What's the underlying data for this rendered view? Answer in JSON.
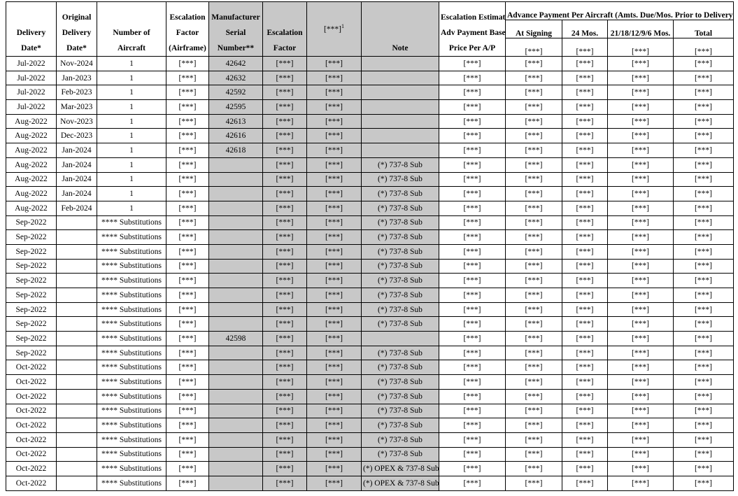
{
  "header": {
    "group": "Advance Payment Per Aircraft (Amts. Due/Mos. Prior to Delivery):",
    "columns": [
      {
        "lines": [
          "Delivery",
          "Date*"
        ]
      },
      {
        "lines": [
          "Original",
          "Delivery",
          "Date*"
        ]
      },
      {
        "lines": [
          "Number of",
          "Aircraft"
        ]
      },
      {
        "lines": [
          "Escalation",
          "Factor",
          "(Airframe)"
        ]
      },
      {
        "lines": [
          "Manufacturer",
          "Serial",
          "Number**"
        ]
      },
      {
        "lines": [
          "Escalation",
          "Factor"
        ]
      },
      {
        "lines": [
          "[***]"
        ],
        "footnote": "1"
      },
      {
        "lines": [
          "Note"
        ]
      },
      {
        "lines": [
          "Escalation Estimate",
          "Adv Payment Base",
          "Price Per A/P"
        ]
      }
    ],
    "subcolumns": [
      {
        "label": "At Signing",
        "code": "[***]"
      },
      {
        "label": "24 Mos.",
        "code": "[***]"
      },
      {
        "label": "21/18/12/9/6 Mos.",
        "code": "[***]"
      },
      {
        "label": "Total",
        "code": "[***]"
      }
    ]
  },
  "table": {
    "rows": [
      [
        "Jul-2022",
        "Nov-2024",
        1,
        "[***]",
        42642,
        "[***]",
        "[***]",
        null,
        "[***]",
        "[***]",
        "[***]",
        "[***]",
        "[***]"
      ],
      [
        "Jul-2022",
        "Jan-2023",
        1,
        "[***]",
        42632,
        "[***]",
        "[***]",
        null,
        "[***]",
        "[***]",
        "[***]",
        "[***]",
        "[***]"
      ],
      [
        "Jul-2022",
        "Feb-2023",
        1,
        "[***]",
        42592,
        "[***]",
        "[***]",
        null,
        "[***]",
        "[***]",
        "[***]",
        "[***]",
        "[***]"
      ],
      [
        "Jul-2022",
        "Mar-2023",
        1,
        "[***]",
        42595,
        "[***]",
        "[***]",
        null,
        "[***]",
        "[***]",
        "[***]",
        "[***]",
        "[***]"
      ],
      [
        "Aug-2022",
        "Nov-2023",
        1,
        "[***]",
        42613,
        "[***]",
        "[***]",
        null,
        "[***]",
        "[***]",
        "[***]",
        "[***]",
        "[***]"
      ],
      [
        "Aug-2022",
        "Dec-2023",
        1,
        "[***]",
        42616,
        "[***]",
        "[***]",
        null,
        "[***]",
        "[***]",
        "[***]",
        "[***]",
        "[***]"
      ],
      [
        "Aug-2022",
        "Jan-2024",
        1,
        "[***]",
        42618,
        "[***]",
        "[***]",
        null,
        "[***]",
        "[***]",
        "[***]",
        "[***]",
        "[***]"
      ],
      [
        "Aug-2022",
        "Jan-2024",
        1,
        "[***]",
        null,
        "[***]",
        "[***]",
        "(*) 737-8 Sub",
        "[***]",
        "[***]",
        "[***]",
        "[***]",
        "[***]"
      ],
      [
        "Aug-2022",
        "Jan-2024",
        1,
        "[***]",
        null,
        "[***]",
        "[***]",
        "(*) 737-8 Sub",
        "[***]",
        "[***]",
        "[***]",
        "[***]",
        "[***]"
      ],
      [
        "Aug-2022",
        "Jan-2024",
        1,
        "[***]",
        null,
        "[***]",
        "[***]",
        "(*) 737-8 Sub",
        "[***]",
        "[***]",
        "[***]",
        "[***]",
        "[***]"
      ],
      [
        "Aug-2022",
        "Feb-2024",
        1,
        "[***]",
        null,
        "[***]",
        "[***]",
        "(*) 737-8 Sub",
        "[***]",
        "[***]",
        "[***]",
        "[***]",
        "[***]"
      ],
      [
        "Sep-2022",
        null,
        "**** Substitutions",
        "[***]",
        null,
        "[***]",
        "[***]",
        "(*) 737-8 Sub",
        "[***]",
        "[***]",
        "[***]",
        "[***]",
        "[***]"
      ],
      [
        "Sep-2022",
        null,
        "**** Substitutions",
        "[***]",
        null,
        "[***]",
        "[***]",
        "(*) 737-8 Sub",
        "[***]",
        "[***]",
        "[***]",
        "[***]",
        "[***]"
      ],
      [
        "Sep-2022",
        null,
        "**** Substitutions",
        "[***]",
        null,
        "[***]",
        "[***]",
        "(*) 737-8 Sub",
        "[***]",
        "[***]",
        "[***]",
        "[***]",
        "[***]"
      ],
      [
        "Sep-2022",
        null,
        "**** Substitutions",
        "[***]",
        null,
        "[***]",
        "[***]",
        "(*) 737-8 Sub",
        "[***]",
        "[***]",
        "[***]",
        "[***]",
        "[***]"
      ],
      [
        "Sep-2022",
        null,
        "**** Substitutions",
        "[***]",
        null,
        "[***]",
        "[***]",
        "(*) 737-8 Sub",
        "[***]",
        "[***]",
        "[***]",
        "[***]",
        "[***]"
      ],
      [
        "Sep-2022",
        null,
        "**** Substitutions",
        "[***]",
        null,
        "[***]",
        "[***]",
        "(*) 737-8 Sub",
        "[***]",
        "[***]",
        "[***]",
        "[***]",
        "[***]"
      ],
      [
        "Sep-2022",
        null,
        "**** Substitutions",
        "[***]",
        null,
        "[***]",
        "[***]",
        "(*) 737-8 Sub",
        "[***]",
        "[***]",
        "[***]",
        "[***]",
        "[***]"
      ],
      [
        "Sep-2022",
        null,
        "**** Substitutions",
        "[***]",
        null,
        "[***]",
        "[***]",
        "(*) 737-8 Sub",
        "[***]",
        "[***]",
        "[***]",
        "[***]",
        "[***]"
      ],
      [
        "Sep-2022",
        null,
        "**** Substitutions",
        "[***]",
        42598,
        "[***]",
        "[***]",
        null,
        "[***]",
        "[***]",
        "[***]",
        "[***]",
        "[***]"
      ],
      [
        "Sep-2022",
        null,
        "**** Substitutions",
        "[***]",
        null,
        "[***]",
        "[***]",
        "(*) 737-8 Sub",
        "[***]",
        "[***]",
        "[***]",
        "[***]",
        "[***]"
      ],
      [
        "Oct-2022",
        null,
        "**** Substitutions",
        "[***]",
        null,
        "[***]",
        "[***]",
        "(*) 737-8 Sub",
        "[***]",
        "[***]",
        "[***]",
        "[***]",
        "[***]"
      ],
      [
        "Oct-2022",
        null,
        "**** Substitutions",
        "[***]",
        null,
        "[***]",
        "[***]",
        "(*) 737-8 Sub",
        "[***]",
        "[***]",
        "[***]",
        "[***]",
        "[***]"
      ],
      [
        "Oct-2022",
        null,
        "**** Substitutions",
        "[***]",
        null,
        "[***]",
        "[***]",
        "(*) 737-8 Sub",
        "[***]",
        "[***]",
        "[***]",
        "[***]",
        "[***]"
      ],
      [
        "Oct-2022",
        null,
        "**** Substitutions",
        "[***]",
        null,
        "[***]",
        "[***]",
        "(*) 737-8 Sub",
        "[***]",
        "[***]",
        "[***]",
        "[***]",
        "[***]"
      ],
      [
        "Oct-2022",
        null,
        "**** Substitutions",
        "[***]",
        null,
        "[***]",
        "[***]",
        "(*) 737-8 Sub",
        "[***]",
        "[***]",
        "[***]",
        "[***]",
        "[***]"
      ],
      [
        "Oct-2022",
        null,
        "**** Substitutions",
        "[***]",
        null,
        "[***]",
        "[***]",
        "(*) 737-8 Sub",
        "[***]",
        "[***]",
        "[***]",
        "[***]",
        "[***]"
      ],
      [
        "Oct-2022",
        null,
        "**** Substitutions",
        "[***]",
        null,
        "[***]",
        "[***]",
        "(*) 737-8 Sub",
        "[***]",
        "[***]",
        "[***]",
        "[***]",
        "[***]"
      ],
      [
        "Oct-2022",
        null,
        "**** Substitutions",
        "[***]",
        null,
        "[***]",
        "[***]",
        "(*) OPEX & 737-8 Sub",
        "[***]",
        "[***]",
        "[***]",
        "[***]",
        "[***]"
      ],
      [
        "Oct-2022",
        null,
        "**** Substitutions",
        "[***]",
        null,
        "[***]",
        "[***]",
        "(*) OPEX & 737-8 Sub",
        "[***]",
        "[***]",
        "[***]",
        "[***]",
        "[***]"
      ]
    ]
  }
}
